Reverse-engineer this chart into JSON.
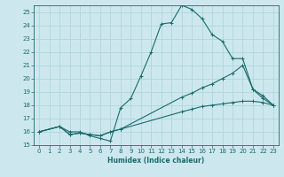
{
  "xlabel": "Humidex (Indice chaleur)",
  "bg_color": "#cce8ee",
  "grid_color": "#b0d5dc",
  "line_color": "#1a6b6b",
  "xlim": [
    -0.5,
    23.5
  ],
  "ylim": [
    15,
    25.5
  ],
  "xticks": [
    0,
    1,
    2,
    3,
    4,
    5,
    6,
    7,
    8,
    9,
    10,
    11,
    12,
    13,
    14,
    15,
    16,
    17,
    18,
    19,
    20,
    21,
    22,
    23
  ],
  "yticks": [
    15,
    16,
    17,
    18,
    19,
    20,
    21,
    22,
    23,
    24,
    25
  ],
  "curve1_x": [
    0,
    2,
    3,
    4,
    5,
    6,
    7,
    8,
    9,
    10,
    11,
    12,
    13,
    14,
    15,
    16,
    17,
    18,
    19,
    20,
    21,
    22,
    23
  ],
  "curve1_y": [
    16.0,
    16.4,
    16.0,
    16.0,
    15.7,
    15.5,
    15.3,
    17.8,
    18.5,
    20.2,
    22.0,
    24.1,
    24.2,
    25.5,
    25.2,
    24.5,
    23.3,
    22.8,
    21.5,
    21.5,
    19.2,
    18.7,
    18.0
  ],
  "curve2_x": [
    0,
    2,
    3,
    4,
    5,
    6,
    7,
    8,
    14,
    15,
    16,
    17,
    18,
    19,
    20,
    21,
    22,
    23
  ],
  "curve2_y": [
    16.0,
    16.4,
    15.8,
    15.9,
    15.8,
    15.7,
    16.0,
    16.2,
    18.6,
    18.9,
    19.3,
    19.6,
    20.0,
    20.4,
    21.0,
    19.2,
    18.5,
    18.0
  ],
  "curve3_x": [
    0,
    2,
    3,
    4,
    5,
    6,
    7,
    8,
    14,
    15,
    16,
    17,
    18,
    19,
    20,
    21,
    22,
    23
  ],
  "curve3_y": [
    16.0,
    16.4,
    15.8,
    15.9,
    15.8,
    15.7,
    16.0,
    16.2,
    17.5,
    17.7,
    17.9,
    18.0,
    18.1,
    18.2,
    18.3,
    18.3,
    18.2,
    18.0
  ],
  "xlabel_fontsize": 5.5,
  "tick_fontsize": 5.0,
  "linewidth": 0.8,
  "markersize": 2.5
}
